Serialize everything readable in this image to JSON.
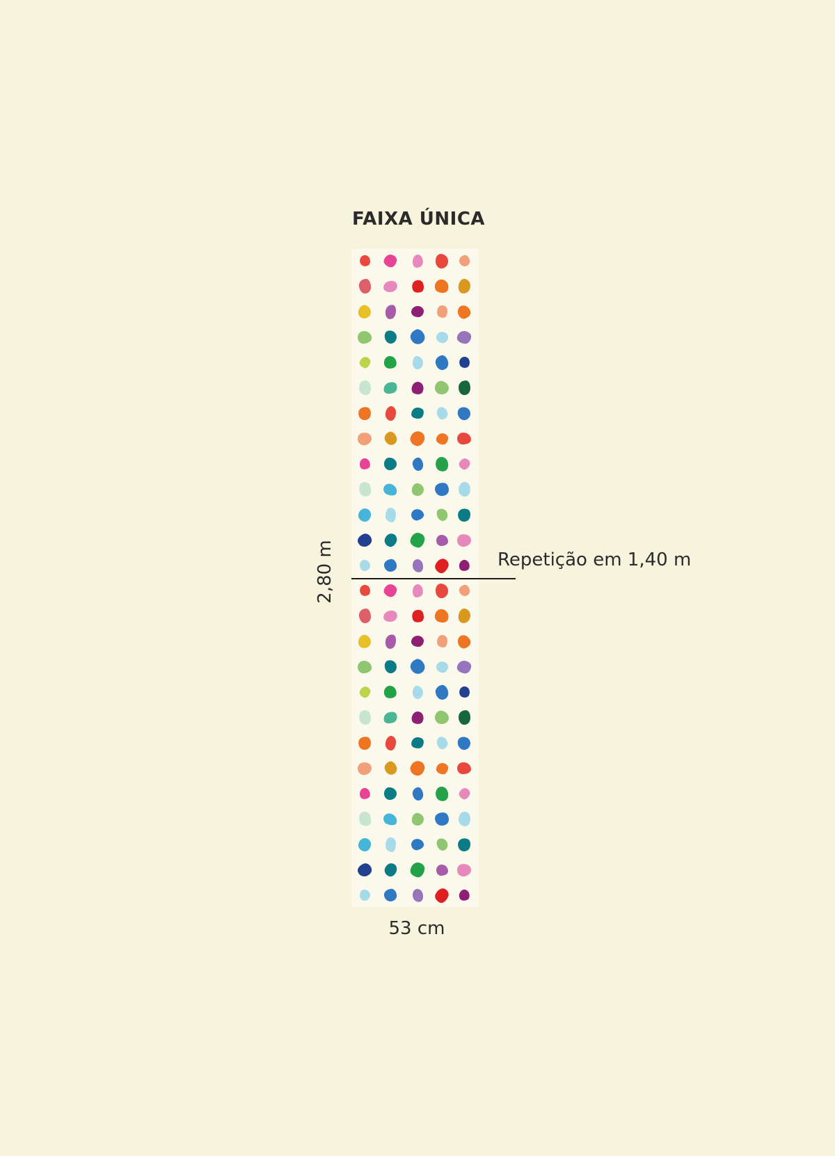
{
  "diagram": {
    "title": "FAIXA ÚNICA",
    "height_label": "2,80 m",
    "width_label": "53 cm",
    "repeat_label": "Repetição em 1,40 m"
  },
  "pattern": {
    "background": "#fbf8ec",
    "repeats": 2,
    "rows": [
      [
        "#e8483e",
        "#e84394",
        "#e889bd",
        "#e8483e",
        "#f2a07a"
      ],
      [
        "#dd5f6a",
        "#e889bd",
        "#de2023",
        "#ee7622",
        "#d9981f"
      ],
      [
        "#e7c026",
        "#a65ca8",
        "#8d1f75",
        "#f2a07a",
        "#ee7622"
      ],
      [
        "#8fc66f",
        "#0b7b85",
        "#2f78c3",
        "#a7dbea",
        "#9775bd"
      ],
      [
        "#bcd449",
        "#23a24a",
        "#a7dbea",
        "#2f78c3",
        "#22408f"
      ],
      [
        "#c7e5d0",
        "#4bb594",
        "#8d1f75",
        "#8fc66f",
        "#18663c"
      ],
      [
        "#ee7622",
        "#e8483e",
        "#0b7b85",
        "#a7dbea",
        "#2f78c3"
      ],
      [
        "#f2a07a",
        "#d9981f",
        "#ee7622",
        "#ee7622",
        "#e8483e"
      ],
      [
        "#e84394",
        "#0b7b85",
        "#2f78c3",
        "#23a24a",
        "#e889bd"
      ],
      [
        "#c7e5d0",
        "#45b5d9",
        "#8fc66f",
        "#2f78c3",
        "#a7dbea"
      ],
      [
        "#45b5d9",
        "#a7dbea",
        "#2f78c3",
        "#8fc66f",
        "#0b7b85"
      ],
      [
        "#22408f",
        "#0b7b85",
        "#23a24a",
        "#a65ca8",
        "#e889bd"
      ],
      [
        "#a7dbea",
        "#2f78c3",
        "#9775bd",
        "#de2023",
        "#8d1f75"
      ]
    ]
  }
}
